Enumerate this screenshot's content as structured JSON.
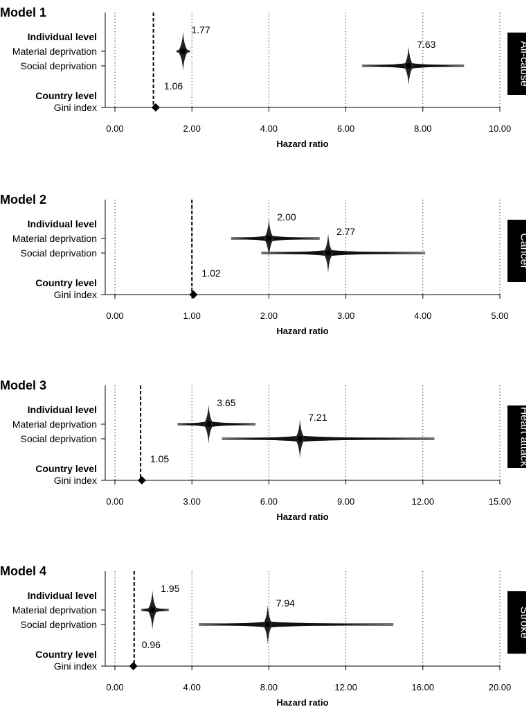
{
  "chart_data": [
    {
      "type": "forest",
      "title": "Model 1",
      "outcome": "All-cause",
      "xlabel": "Hazard ratio",
      "xlim": [
        0,
        10
      ],
      "xticks": [
        0,
        2,
        4,
        6,
        8,
        10
      ],
      "xtick_labels": [
        "0.00",
        "2.00",
        "4.00",
        "6.00",
        "8.00",
        "10.00"
      ],
      "reference_line": 1,
      "group_labels": [
        "Individual level",
        "Country level"
      ],
      "rows": [
        {
          "label": "Material deprivation",
          "hr": 1.77,
          "hr_label": "1.77",
          "ci_low": 1.6,
          "ci_high": 1.95,
          "marker": "diamond-glow"
        },
        {
          "label": "Social deprivation",
          "hr": 7.63,
          "hr_label": "7.63",
          "ci_low": 6.42,
          "ci_high": 9.07,
          "marker": "diamond-glow"
        },
        {
          "label": "Gini index",
          "hr": 1.06,
          "hr_label": "1.06",
          "ci_low": 1.06,
          "ci_high": 1.06,
          "marker": "diamond"
        }
      ]
    },
    {
      "type": "forest",
      "title": "Model 2",
      "outcome": "Cancer",
      "xlabel": "Hazard ratio",
      "xlim": [
        0,
        5
      ],
      "xticks": [
        0,
        1,
        2,
        3,
        4,
        5
      ],
      "xtick_labels": [
        "0.00",
        "1.00",
        "2.00",
        "3.00",
        "4.00",
        "5.00"
      ],
      "reference_line": 1,
      "group_labels": [
        "Individual level",
        "Country level"
      ],
      "rows": [
        {
          "label": "Material deprivation",
          "hr": 2.0,
          "hr_label": "2.00",
          "ci_low": 1.51,
          "ci_high": 2.66,
          "marker": "diamond-glow"
        },
        {
          "label": "Social deprivation",
          "hr": 2.77,
          "hr_label": "2.77",
          "ci_low": 1.9,
          "ci_high": 4.03,
          "marker": "diamond-glow"
        },
        {
          "label": "Gini index",
          "hr": 1.02,
          "hr_label": "1.02",
          "ci_low": 1.02,
          "ci_high": 1.02,
          "marker": "diamond"
        }
      ]
    },
    {
      "type": "forest",
      "title": "Model 3",
      "outcome": "Heart attack",
      "xlabel": "Hazard ratio",
      "xlim": [
        0,
        15
      ],
      "xticks": [
        0,
        3,
        6,
        9,
        12,
        15
      ],
      "xtick_labels": [
        "0.00",
        "3.00",
        "6.00",
        "9.00",
        "12.00",
        "15.00"
      ],
      "reference_line": 1,
      "group_labels": [
        "Individual level",
        "Country level"
      ],
      "rows": [
        {
          "label": "Material deprivation",
          "hr": 3.65,
          "hr_label": "3.65",
          "ci_low": 2.44,
          "ci_high": 5.48,
          "marker": "diamond-glow"
        },
        {
          "label": "Social deprivation",
          "hr": 7.21,
          "hr_label": "7.21",
          "ci_low": 4.17,
          "ci_high": 12.45,
          "marker": "diamond-glow"
        },
        {
          "label": "Gini index",
          "hr": 1.05,
          "hr_label": "1.05",
          "ci_low": 1.05,
          "ci_high": 1.05,
          "marker": "diamond"
        }
      ]
    },
    {
      "type": "forest",
      "title": "Model 4",
      "outcome": "Stroke",
      "xlabel": "Hazard ratio",
      "xlim": [
        0,
        20
      ],
      "xticks": [
        0,
        4,
        8,
        12,
        16,
        20
      ],
      "xtick_labels": [
        "0.00",
        "4.00",
        "8.00",
        "12.00",
        "16.00",
        "20.00"
      ],
      "reference_line": 1,
      "group_labels": [
        "Individual level",
        "Country level"
      ],
      "rows": [
        {
          "label": "Material deprivation",
          "hr": 1.95,
          "hr_label": "1.95",
          "ci_low": 1.37,
          "ci_high": 2.8,
          "marker": "diamond-glow"
        },
        {
          "label": "Social deprivation",
          "hr": 7.94,
          "hr_label": "7.94",
          "ci_low": 4.36,
          "ci_high": 14.47,
          "marker": "diamond-glow"
        },
        {
          "label": "Gini index",
          "hr": 0.96,
          "hr_label": "0.96",
          "ci_low": 0.96,
          "ci_high": 0.96,
          "marker": "diamond"
        }
      ]
    }
  ]
}
